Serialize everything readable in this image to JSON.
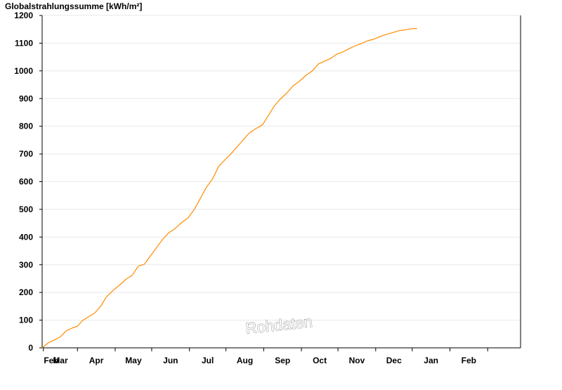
{
  "chart_data": {
    "type": "line",
    "title": "",
    "ylabel": "Globalstrahlungssumme [kWh/m²]",
    "xlabel": "",
    "ylim": [
      0,
      1200
    ],
    "yticks": [
      0,
      100,
      200,
      300,
      400,
      500,
      600,
      700,
      800,
      900,
      1000,
      1100,
      1200
    ],
    "x_tick_labels": [
      "Feb",
      "Mar",
      "Apr",
      "May",
      "Jun",
      "Jul",
      "Aug",
      "Sep",
      "Oct",
      "Nov",
      "Dec",
      "Jan",
      "Feb"
    ],
    "xlim": [
      "2022-01-31",
      "2023-02-28"
    ],
    "grid": true,
    "watermark": "Rohdaten",
    "series": [
      {
        "color": "#ff8c00",
        "x": [
          "2022-01-31",
          "2022-02-05",
          "2022-02-10",
          "2022-02-15",
          "2022-02-20",
          "2022-02-25",
          "2022-03-01",
          "2022-03-05",
          "2022-03-10",
          "2022-03-15",
          "2022-03-20",
          "2022-03-25",
          "2022-03-31",
          "2022-04-05",
          "2022-04-10",
          "2022-04-15",
          "2022-04-20",
          "2022-04-25",
          "2022-04-30",
          "2022-05-05",
          "2022-05-10",
          "2022-05-15",
          "2022-05-20",
          "2022-05-25",
          "2022-05-31",
          "2022-06-05",
          "2022-06-10",
          "2022-06-15",
          "2022-06-20",
          "2022-06-25",
          "2022-06-30",
          "2022-07-05",
          "2022-07-10",
          "2022-07-15",
          "2022-07-20",
          "2022-07-25",
          "2022-07-31",
          "2022-08-05",
          "2022-08-10",
          "2022-08-15",
          "2022-08-20",
          "2022-08-25",
          "2022-08-31",
          "2022-09-05",
          "2022-09-10",
          "2022-09-15",
          "2022-09-20",
          "2022-09-25",
          "2022-09-30",
          "2022-10-05",
          "2022-10-10",
          "2022-10-15",
          "2022-10-20",
          "2022-10-25",
          "2022-10-31",
          "2022-11-05",
          "2022-11-10",
          "2022-11-15",
          "2022-11-20",
          "2022-11-25",
          "2022-11-30",
          "2022-12-05"
        ],
        "y": [
          0,
          18,
          28,
          40,
          62,
          72,
          78,
          98,
          112,
          125,
          150,
          185,
          210,
          228,
          248,
          262,
          295,
          302,
          332,
          362,
          392,
          415,
          430,
          450,
          470,
          500,
          540,
          580,
          610,
          655,
          678,
          700,
          725,
          750,
          775,
          790,
          805,
          840,
          875,
          900,
          920,
          945,
          965,
          985,
          1000,
          1025,
          1035,
          1045,
          1060,
          1068,
          1080,
          1090,
          1098,
          1108,
          1115,
          1125,
          1132,
          1138,
          1145,
          1148,
          1152,
          1153
        ]
      }
    ]
  }
}
